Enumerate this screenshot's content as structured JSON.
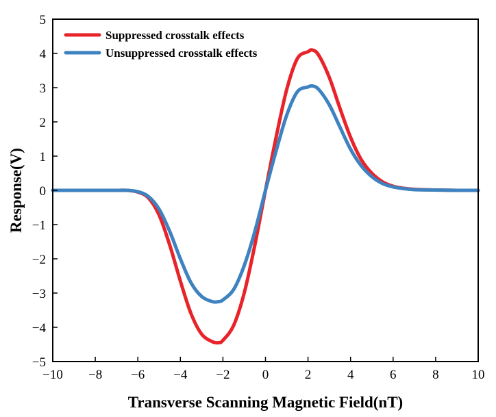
{
  "chart_data": {
    "type": "line",
    "title": "",
    "xlabel": "Transverse Scanning Magnetic Field(nT)",
    "ylabel": "Response(V)",
    "xlim": [
      -10,
      10
    ],
    "ylim": [
      -5,
      5
    ],
    "xticks": [
      -10,
      -8,
      -6,
      -4,
      -2,
      0,
      2,
      4,
      6,
      8,
      10
    ],
    "yticks": [
      -5,
      -4,
      -3,
      -2,
      -1,
      0,
      1,
      2,
      3,
      4,
      5
    ],
    "xtick_labels": [
      "−10",
      "−8",
      "−6",
      "−4",
      "−2",
      "0",
      "2",
      "4",
      "6",
      "8",
      "10"
    ],
    "ytick_labels": [
      "−5",
      "−4",
      "−3",
      "−2",
      "−1",
      "0",
      "1",
      "2",
      "3",
      "4",
      "5"
    ],
    "grid": false,
    "legend_position": "top-left",
    "x": [
      -10,
      -8,
      -7,
      -6.5,
      -6,
      -5.5,
      -5,
      -4.5,
      -4,
      -3.5,
      -3,
      -2.5,
      -2.2,
      -2,
      -1.5,
      -1,
      -0.5,
      0,
      0.5,
      1,
      1.5,
      2,
      2.2,
      2.5,
      3,
      3.5,
      4,
      4.5,
      5,
      5.5,
      6,
      6.5,
      7,
      8,
      9,
      10
    ],
    "series": [
      {
        "name": "Suppressed crosstalk effects",
        "color": "#e8242a",
        "values": [
          0,
          0,
          0,
          0,
          -0.05,
          -0.22,
          -0.72,
          -1.6,
          -2.65,
          -3.6,
          -4.2,
          -4.42,
          -4.45,
          -4.38,
          -3.95,
          -3.0,
          -1.6,
          0,
          1.55,
          2.95,
          3.85,
          4.05,
          4.1,
          3.95,
          3.3,
          2.4,
          1.55,
          0.9,
          0.5,
          0.25,
          0.12,
          0.06,
          0.03,
          0.01,
          0,
          0
        ]
      },
      {
        "name": "Unsuppressed crosstalk effects",
        "color": "#3e82c0",
        "values": [
          0,
          0,
          0,
          0,
          -0.04,
          -0.18,
          -0.55,
          -1.2,
          -2.0,
          -2.7,
          -3.1,
          -3.25,
          -3.25,
          -3.2,
          -2.9,
          -2.2,
          -1.2,
          0,
          1.15,
          2.2,
          2.88,
          3.02,
          3.05,
          2.95,
          2.5,
          1.85,
          1.2,
          0.72,
          0.4,
          0.2,
          0.1,
          0.05,
          0.02,
          0.01,
          0,
          0
        ]
      }
    ]
  }
}
